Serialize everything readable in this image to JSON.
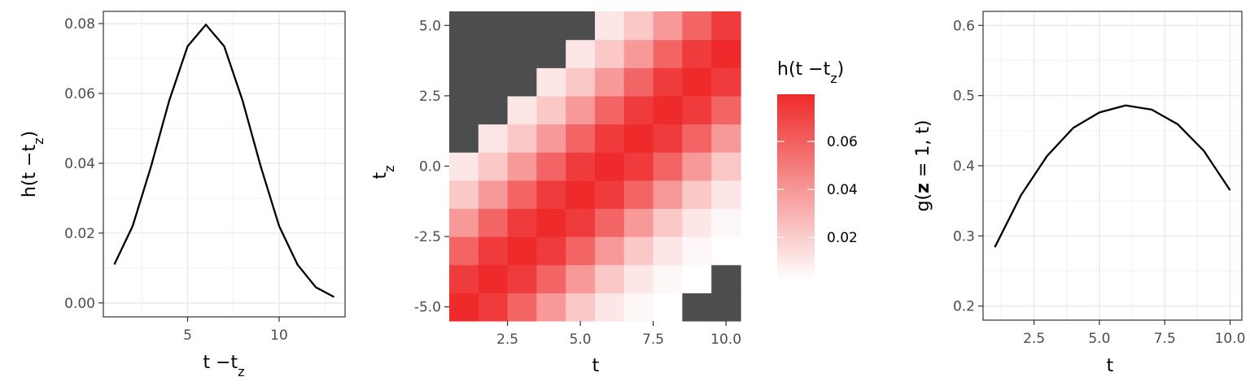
{
  "colors": {
    "line": "#000000",
    "na_fill": "#4d4d4d",
    "gradient_low": "#ffffff",
    "gradient_high": "#ee2a2a",
    "grid": "#ebebeb",
    "border": "#333333"
  },
  "chart_data": [
    {
      "type": "line",
      "xlabel": "t − t_z",
      "ylabel": "h(t − t_z)",
      "xlim": [
        0.4,
        13.6
      ],
      "ylim": [
        -0.004,
        0.0835
      ],
      "xticks": [
        5,
        10
      ],
      "xtick_labels": [
        "5",
        "10"
      ],
      "yticks": [
        0,
        0.02,
        0.04,
        0.06,
        0.08
      ],
      "ytick_labels": [
        "0.00",
        "0.02",
        "0.04",
        "0.06",
        "0.08"
      ],
      "grid": true,
      "series": [
        {
          "x": [
            1,
            2,
            3,
            4,
            5,
            6,
            7,
            8,
            9,
            10,
            11,
            12,
            13
          ],
          "y": [
            0.011,
            0.022,
            0.039,
            0.058,
            0.0735,
            0.0797,
            0.0735,
            0.058,
            0.039,
            0.022,
            0.011,
            0.0045,
            0.0017
          ]
        }
      ]
    },
    {
      "type": "heatmap",
      "xlabel": "t",
      "ylabel": "t_z",
      "x": [
        1,
        2,
        3,
        4,
        5,
        6,
        7,
        8,
        9,
        10
      ],
      "y": [
        -5,
        -4,
        -3,
        -2,
        -1,
        0,
        1,
        2,
        3,
        4,
        5
      ],
      "xlim": [
        0.5,
        10.5
      ],
      "ylim": [
        -5.5,
        5.5
      ],
      "xticks": [
        2.5,
        5,
        7.5,
        10
      ],
      "xtick_labels": [
        "2.5",
        "5.0",
        "7.5",
        "10.0"
      ],
      "yticks": [
        -5,
        -2.5,
        0,
        2.5,
        5
      ],
      "ytick_labels": [
        "-5.0",
        "-2.5",
        "0.0",
        "2.5",
        "5.0"
      ],
      "value_rule": "h(t − t_z); cells with t − t_z outside 1..13 are NA (dark grey)",
      "h_by_lag": [
        0.011,
        0.022,
        0.039,
        0.058,
        0.0735,
        0.0797,
        0.0735,
        0.058,
        0.039,
        0.022,
        0.011,
        0.0045,
        0.0017
      ],
      "legend": {
        "title": "h(t − t_z)",
        "range": [
          0.0017,
          0.0797
        ],
        "ticks": [
          0.02,
          0.04,
          0.06
        ],
        "tick_labels": [
          "0.02",
          "0.04",
          "0.06"
        ],
        "position": "right"
      }
    },
    {
      "type": "line",
      "xlabel": "t",
      "ylabel": "g(z = 1, t)",
      "xlim": [
        0.55,
        10.45
      ],
      "ylim": [
        0.18,
        0.62
      ],
      "xticks": [
        2.5,
        5,
        7.5,
        10
      ],
      "xtick_labels": [
        "2.5",
        "5.0",
        "7.5",
        "10.0"
      ],
      "yticks": [
        0.2,
        0.3,
        0.4,
        0.5,
        0.6
      ],
      "ytick_labels": [
        "0.2",
        "0.3",
        "0.4",
        "0.5",
        "0.6"
      ],
      "grid": true,
      "series": [
        {
          "x": [
            1,
            2,
            3,
            4,
            5,
            6,
            7,
            8,
            9,
            10
          ],
          "y": [
            0.284,
            0.358,
            0.414,
            0.454,
            0.476,
            0.486,
            0.48,
            0.459,
            0.421,
            0.365
          ]
        }
      ]
    }
  ]
}
